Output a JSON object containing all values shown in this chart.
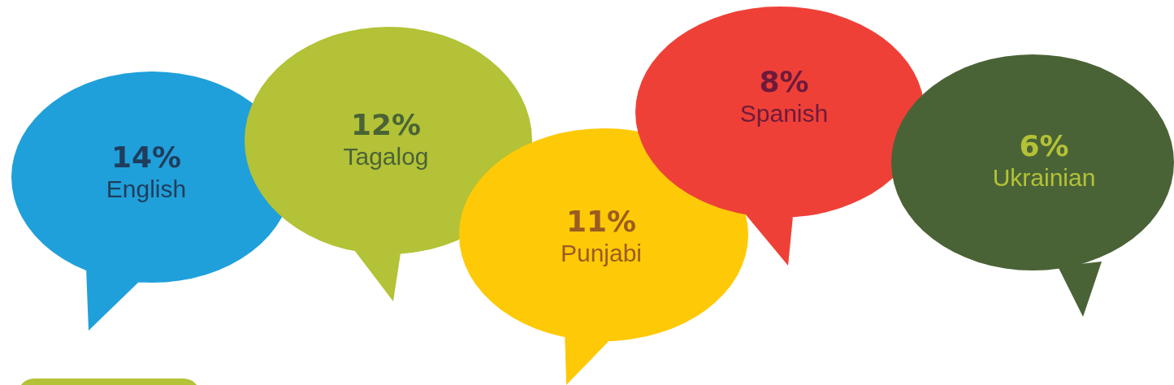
{
  "chart_data": {
    "type": "other",
    "categories": [
      "English",
      "Tagalog",
      "Punjabi",
      "Spanish",
      "Ukrainian"
    ],
    "values": [
      14,
      12,
      11,
      8,
      6
    ],
    "value_labels": [
      "14%",
      "12%",
      "11%",
      "8%",
      "6%"
    ],
    "colors": [
      "#20a0da",
      "#b3c236",
      "#fec907",
      "#ef4038",
      "#4a6336"
    ]
  }
}
